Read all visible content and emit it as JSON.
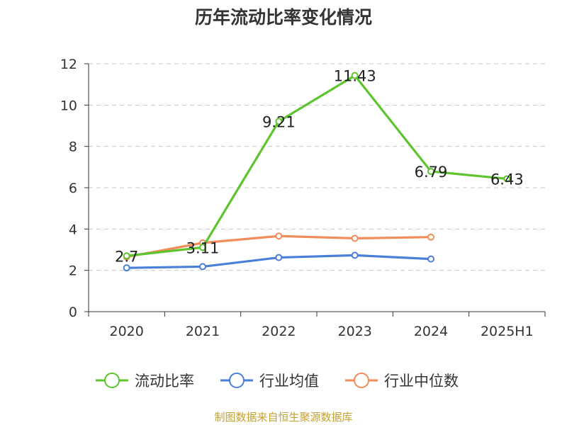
{
  "chart_data": {
    "type": "line",
    "title": "历年流动比率变化情况",
    "categories": [
      "2020",
      "2021",
      "2022",
      "2023",
      "2024",
      "2025H1"
    ],
    "ylim": [
      0,
      12
    ],
    "yticks": [
      "0",
      "2",
      "4",
      "6",
      "8",
      "10",
      "12"
    ],
    "grid": true,
    "legend_position": "bottom",
    "series": [
      {
        "name": "流动比率",
        "color": "#5ec42d",
        "values": [
          2.7,
          3.11,
          9.21,
          11.43,
          6.79,
          6.43
        ],
        "labels": [
          "2.7",
          "3.11",
          "9.21",
          "11.43",
          "6.79",
          "6.43"
        ]
      },
      {
        "name": "行业均值",
        "color": "#4a7fd9",
        "values": [
          2.12,
          2.18,
          2.62,
          2.73,
          2.55,
          null
        ]
      },
      {
        "name": "行业中位数",
        "color": "#f28c5a",
        "values": [
          2.65,
          3.33,
          3.66,
          3.55,
          3.61,
          null
        ]
      }
    ]
  },
  "source": "制图数据来自恒生聚源数据库"
}
